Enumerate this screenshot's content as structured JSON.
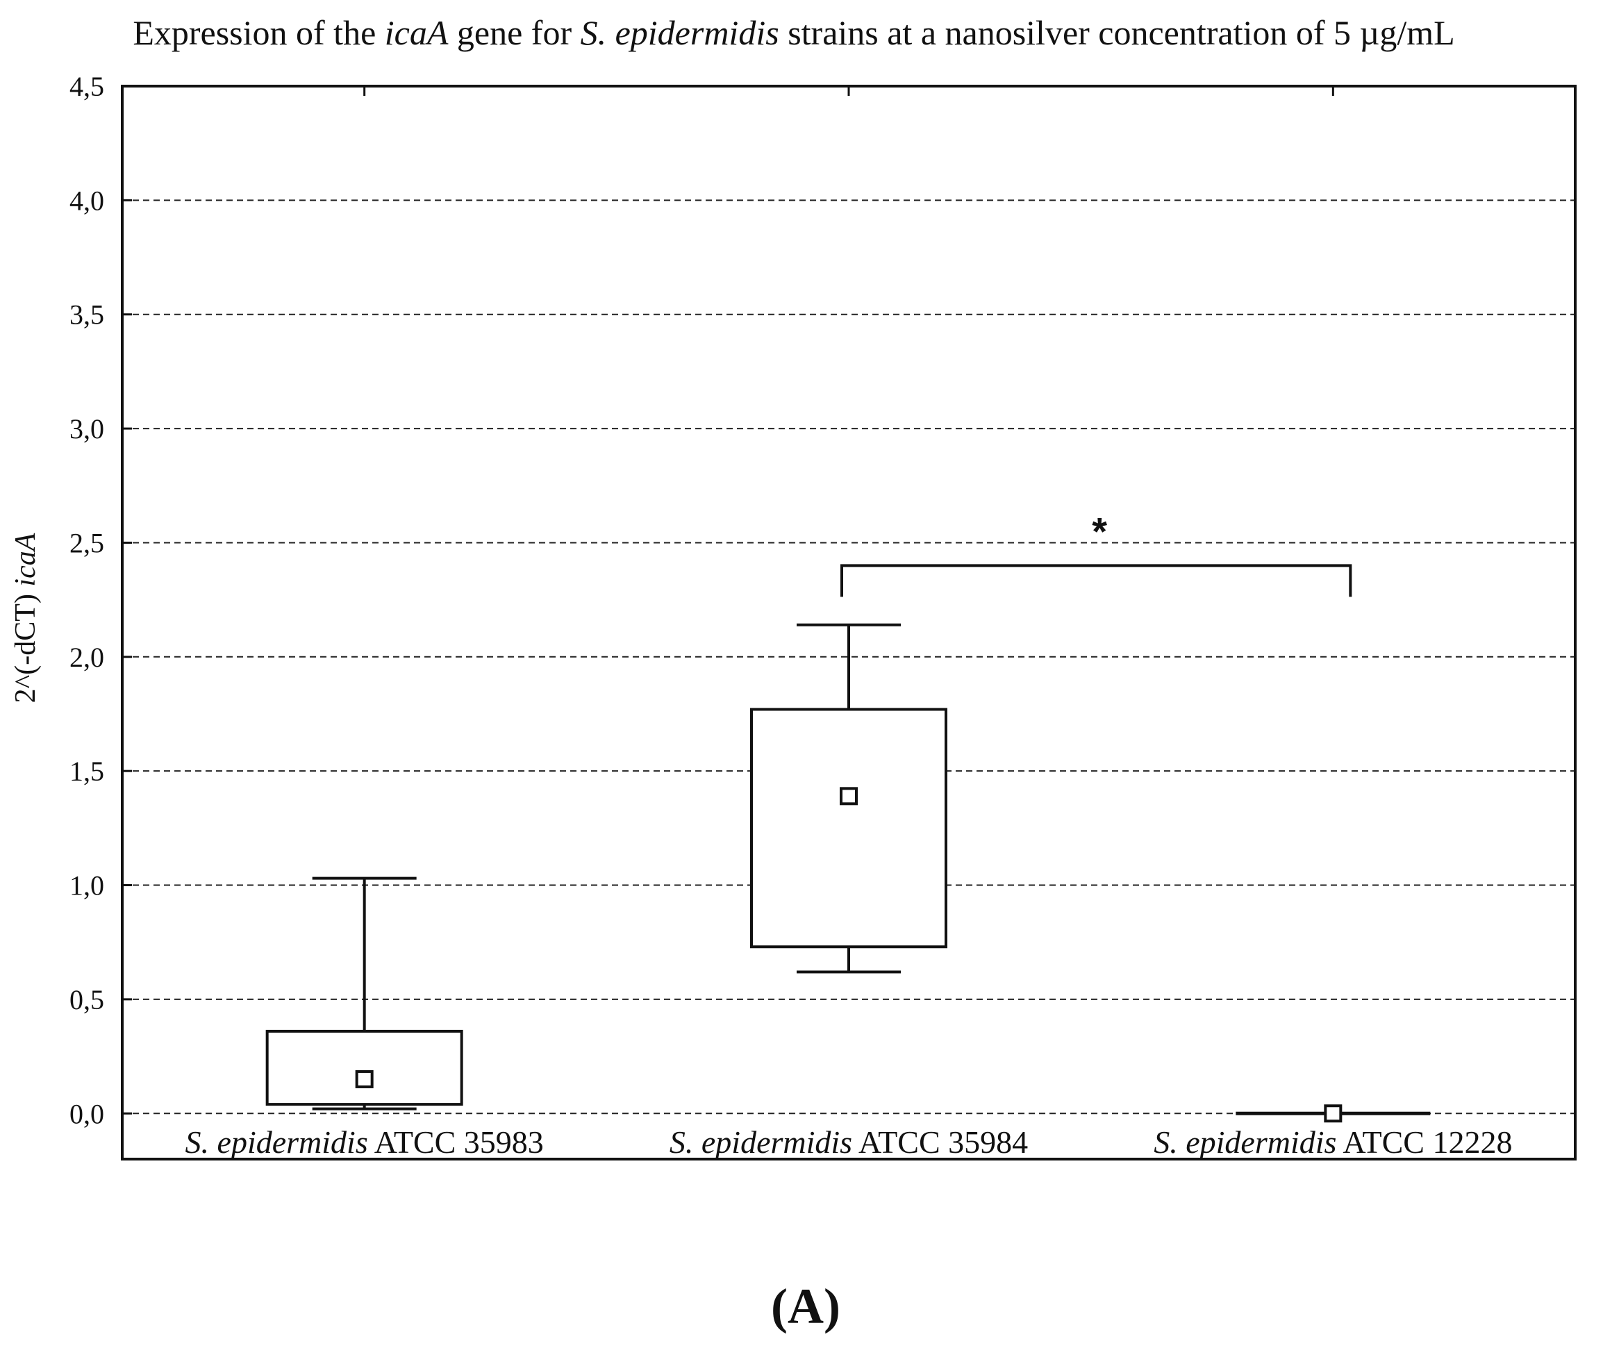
{
  "chart_data": {
    "type": "box",
    "title_parts": [
      {
        "text": "Expression of the ",
        "italic": false
      },
      {
        "text": "icaA",
        "italic": true
      },
      {
        "text": " gene for ",
        "italic": false
      },
      {
        "text": "S. epidermidis",
        "italic": true
      },
      {
        "text": "  strains at a nanosilver concentration of 5 µg/mL",
        "italic": false
      }
    ],
    "ylabel_parts": [
      {
        "text": "2^(-dCT) ",
        "italic": false
      },
      {
        "text": "icaA",
        "italic": true
      }
    ],
    "ylim": [
      -0.2,
      4.5
    ],
    "yticks": [
      "0,0",
      "0,5",
      "1,0",
      "1,5",
      "2,0",
      "2,5",
      "3,0",
      "3,5",
      "4,0",
      "4,5"
    ],
    "ytick_values": [
      0,
      0.5,
      1.0,
      1.5,
      2.0,
      2.5,
      3.0,
      3.5,
      4.0,
      4.5
    ],
    "grid": "horizontal dashed",
    "categories": [
      {
        "italic": "S. epidermidis",
        "plain": " ATCC 35983"
      },
      {
        "italic": "S. epidermidis",
        "plain": " ATCC 35984"
      },
      {
        "italic": "S. epidermidis",
        "plain": " ATCC 12228"
      }
    ],
    "boxes": [
      {
        "whisker_low": 0.02,
        "q1": 0.04,
        "median": 0.15,
        "q3": 0.36,
        "whisker_high": 1.03
      },
      {
        "whisker_low": 0.62,
        "q1": 0.73,
        "median": 1.39,
        "q3": 1.77,
        "whisker_high": 2.14
      },
      {
        "whisker_low": 0.0,
        "q1": 0.0,
        "median": 0.0,
        "q3": 0.0,
        "whisker_high": 0.0
      }
    ],
    "significance": {
      "from": 1,
      "to": 2,
      "level": 2.4,
      "label": "*"
    }
  },
  "panel_label": "(A)"
}
